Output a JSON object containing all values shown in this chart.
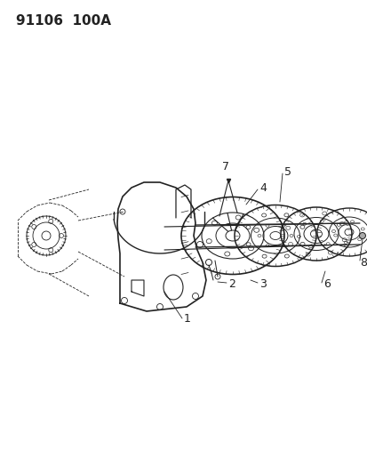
{
  "title": "91106  100A",
  "background_color": "#ffffff",
  "line_color": "#222222",
  "label_color": "#222222",
  "title_fontsize": 11,
  "label_fontsize": 9,
  "fig_width": 4.14,
  "fig_height": 5.33,
  "dpi": 100
}
